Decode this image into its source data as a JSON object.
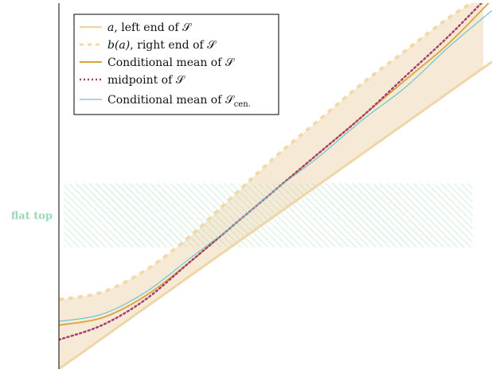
{
  "colors": {
    "band_fill": "#f6ead6",
    "left_end": "#efd6a8",
    "right_end": "#f1d9a9",
    "cond_mean": "#d8a43c",
    "midpoint": "#a8416a",
    "cond_mean_cen": "#62c2d3",
    "flat_top": "#9ad9b4",
    "axis": "#000000"
  },
  "flat_top_label": "flat top",
  "legend": {
    "left_end": {
      "symbol": "a",
      "text": ", left end of 𝒮"
    },
    "right_end": {
      "symbol": "b(a)",
      "text": ", right end of 𝒮"
    },
    "cond_mean": {
      "text": "Conditional mean of 𝒮"
    },
    "midpoint": {
      "text": "midpoint of 𝒮"
    },
    "cond_mean_cen": {
      "text": "Conditional mean of 𝒮",
      "sub": "cen."
    }
  },
  "chart_data": {
    "type": "line",
    "title": "",
    "xlabel": "",
    "ylabel": "",
    "grid": false,
    "legend_position": "top-left",
    "xlim": [
      0,
      1
    ],
    "ylim": [
      0,
      1
    ],
    "annotation": {
      "label": "flat top",
      "y_range": [
        0.333,
        0.508
      ]
    },
    "series": [
      {
        "name": "a, left end of 𝒮",
        "style": "solid",
        "x": [
          0,
          0.5,
          1
        ],
        "y": [
          0,
          0.42,
          0.84
        ]
      },
      {
        "name": "b(a), right end of 𝒮",
        "style": "dashed",
        "x": [
          0,
          0.1,
          0.2,
          0.3,
          0.4,
          0.5,
          0.6,
          0.7,
          0.8,
          0.9,
          0.98
        ],
        "y": [
          0.19,
          0.21,
          0.27,
          0.36,
          0.47,
          0.58,
          0.68,
          0.78,
          0.87,
          0.96,
          1.02
        ]
      },
      {
        "name": "Conditional mean of 𝒮",
        "style": "solid",
        "x": [
          0,
          0.1,
          0.2,
          0.3,
          0.4,
          0.5,
          0.6,
          0.7,
          0.8,
          0.9,
          1.0
        ],
        "y": [
          0.12,
          0.14,
          0.2,
          0.29,
          0.39,
          0.49,
          0.59,
          0.69,
          0.79,
          0.89,
          1.01
        ]
      },
      {
        "name": "midpoint of 𝒮",
        "style": "dotted",
        "x": [
          0,
          0.1,
          0.2,
          0.3,
          0.4,
          0.5,
          0.6,
          0.7,
          0.8,
          0.9,
          1.0
        ],
        "y": [
          0.08,
          0.12,
          0.19,
          0.29,
          0.39,
          0.49,
          0.59,
          0.69,
          0.8,
          0.91,
          1.03
        ]
      },
      {
        "name": "Conditional mean of 𝒮 cen.",
        "style": "solid",
        "x": [
          0,
          0.1,
          0.2,
          0.3,
          0.4,
          0.5,
          0.6,
          0.7,
          0.8,
          0.9,
          1.0
        ],
        "y": [
          0.13,
          0.15,
          0.21,
          0.3,
          0.39,
          0.49,
          0.58,
          0.68,
          0.77,
          0.88,
          0.98
        ]
      }
    ]
  }
}
